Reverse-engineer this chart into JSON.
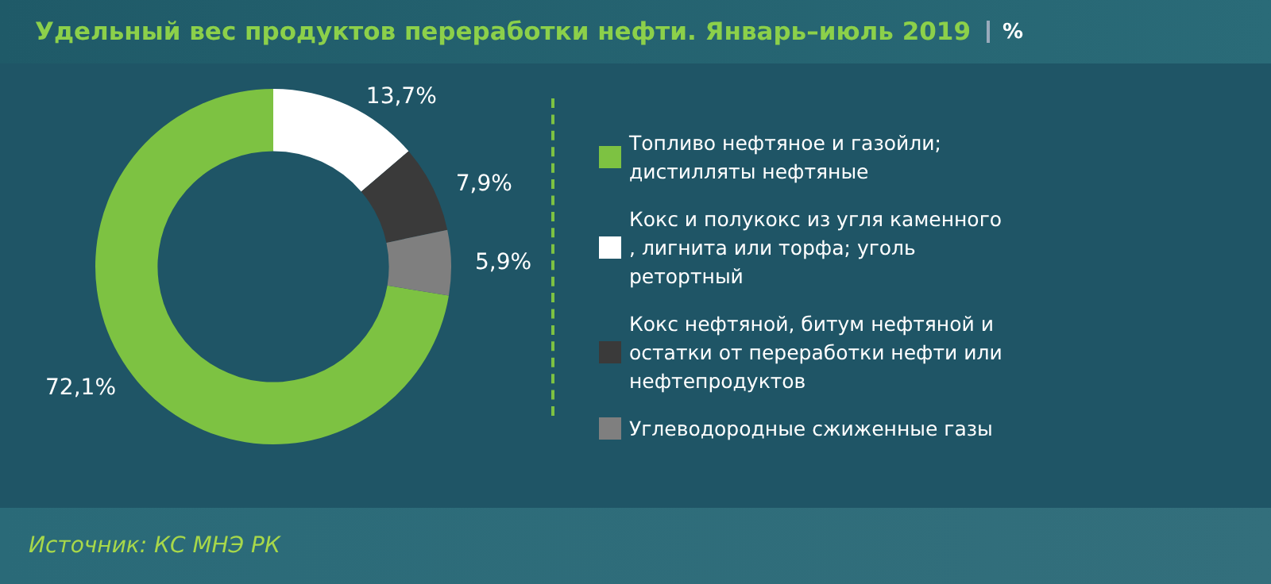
{
  "chart_data": {
    "type": "donut",
    "title": "Удельный вес продуктов переработки нефти. Январь–июль 2019",
    "subtitle": "%",
    "categories": [
      "Топливо нефтяное и газойли; дистилляты нефтяные",
      "Кокс и полукокс из угля каменного, лигнита или торфа; уголь ретортный",
      "Кокс нефтяной, битум нефтяной и остатки от переработки нефти или нефтепродуктов",
      "Углеводородные сжиженные газы"
    ],
    "values": [
      72.1,
      13.7,
      7.9,
      5.9
    ],
    "colors": [
      "#7dc242",
      "#ffffff",
      "#3a3a3a",
      "#7f7f7f"
    ],
    "value_labels": [
      "72,1%",
      "13,7%",
      "7,9%",
      "5,9%"
    ],
    "legend": "right",
    "annotations": [
      "Источник: КС МНЭ РК"
    ]
  }
}
